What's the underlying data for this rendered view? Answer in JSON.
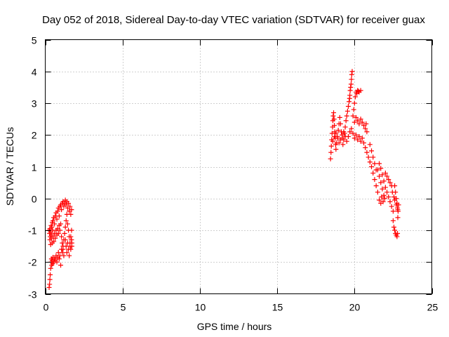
{
  "chart_data": {
    "type": "scatter",
    "title": "Day 052 of 2018, Sidereal Day-to-day VTEC variation (SDTVAR) for receiver guax",
    "xlabel": "GPS time / hours",
    "ylabel": "SDTVAR / TECUs",
    "xlim": [
      0,
      25
    ],
    "ylim": [
      -3,
      5
    ],
    "xticks": [
      "0",
      "5",
      "10",
      "15",
      "20",
      "25"
    ],
    "yticks": [
      "-3",
      "-2",
      "-1",
      "0",
      "1",
      "2",
      "3",
      "4",
      "5"
    ],
    "grid": true,
    "marker": "plus",
    "color": "#ff0000",
    "series": [
      {
        "name": "",
        "points": [
          [
            0.25,
            -2.8
          ],
          [
            0.28,
            -2.7
          ],
          [
            0.3,
            -2.55
          ],
          [
            0.32,
            -2.4
          ],
          [
            0.35,
            -2.2
          ],
          [
            0.38,
            -2.0
          ],
          [
            0.4,
            -1.9
          ],
          [
            0.42,
            -2.1
          ],
          [
            0.45,
            -1.95
          ],
          [
            0.48,
            -2.05
          ],
          [
            0.5,
            -1.85
          ],
          [
            0.55,
            -2.0
          ],
          [
            0.6,
            -1.9
          ],
          [
            0.65,
            -1.95
          ],
          [
            0.7,
            -1.8
          ],
          [
            0.75,
            -2.0
          ],
          [
            0.8,
            -1.85
          ],
          [
            0.85,
            -1.7
          ],
          [
            0.9,
            -1.9
          ],
          [
            0.95,
            -1.8
          ],
          [
            1.0,
            -2.1
          ],
          [
            1.05,
            -1.6
          ],
          [
            1.1,
            -1.7
          ],
          [
            1.15,
            -1.5
          ],
          [
            1.2,
            -1.8
          ],
          [
            0.25,
            -1.0
          ],
          [
            0.28,
            -1.1
          ],
          [
            0.3,
            -0.95
          ],
          [
            0.32,
            -1.2
          ],
          [
            0.35,
            -1.05
          ],
          [
            0.38,
            -0.85
          ],
          [
            0.4,
            -1.15
          ],
          [
            0.42,
            -0.9
          ],
          [
            0.45,
            -0.75
          ],
          [
            0.48,
            -1.0
          ],
          [
            0.5,
            -0.7
          ],
          [
            0.55,
            -0.6
          ],
          [
            0.6,
            -0.8
          ],
          [
            0.65,
            -0.55
          ],
          [
            0.7,
            -0.45
          ],
          [
            0.75,
            -0.65
          ],
          [
            0.8,
            -0.4
          ],
          [
            0.85,
            -0.3
          ],
          [
            0.9,
            -0.55
          ],
          [
            0.95,
            -0.25
          ],
          [
            1.0,
            -0.2
          ],
          [
            1.05,
            -0.35
          ],
          [
            1.1,
            -0.15
          ],
          [
            1.15,
            -0.1
          ],
          [
            1.2,
            -0.25
          ],
          [
            1.25,
            -0.15
          ],
          [
            1.3,
            -0.05
          ],
          [
            1.35,
            -0.2
          ],
          [
            1.4,
            -0.1
          ],
          [
            1.45,
            -0.3
          ],
          [
            1.5,
            -0.15
          ],
          [
            1.55,
            -0.4
          ],
          [
            1.6,
            -0.25
          ],
          [
            1.65,
            -0.5
          ],
          [
            1.7,
            -0.35
          ],
          [
            0.3,
            -1.3
          ],
          [
            0.35,
            -1.45
          ],
          [
            0.4,
            -1.25
          ],
          [
            0.45,
            -1.4
          ],
          [
            0.5,
            -1.2
          ],
          [
            0.55,
            -1.35
          ],
          [
            0.6,
            -1.1
          ],
          [
            0.65,
            -1.25
          ],
          [
            0.7,
            -1.0
          ],
          [
            0.75,
            -1.15
          ],
          [
            0.8,
            -0.95
          ],
          [
            0.85,
            -1.1
          ],
          [
            0.9,
            -0.85
          ],
          [
            0.95,
            -1.0
          ],
          [
            1.0,
            -0.8
          ],
          [
            1.05,
            -1.2
          ],
          [
            1.1,
            -1.4
          ],
          [
            1.15,
            -1.6
          ],
          [
            1.2,
            -1.3
          ],
          [
            1.25,
            -1.1
          ],
          [
            1.3,
            -0.9
          ],
          [
            1.35,
            -0.7
          ],
          [
            1.4,
            -0.5
          ],
          [
            1.45,
            -0.8
          ],
          [
            1.5,
            -1.0
          ],
          [
            1.55,
            -1.2
          ],
          [
            1.6,
            -1.4
          ],
          [
            1.65,
            -1.6
          ],
          [
            1.7,
            -1.3
          ],
          [
            1.72,
            -1.5
          ],
          [
            1.3,
            -1.3
          ],
          [
            1.35,
            -1.5
          ],
          [
            1.4,
            -1.7
          ],
          [
            1.45,
            -1.4
          ],
          [
            1.5,
            -1.6
          ],
          [
            1.55,
            -1.8
          ],
          [
            1.6,
            -1.5
          ],
          [
            1.65,
            -1.2
          ],
          [
            1.7,
            -1.0
          ],
          [
            1.72,
            -1.4
          ],
          [
            18.45,
            1.25
          ],
          [
            18.48,
            1.45
          ],
          [
            18.5,
            1.65
          ],
          [
            18.52,
            1.85
          ],
          [
            18.55,
            2.05
          ],
          [
            18.58,
            2.25
          ],
          [
            18.6,
            2.45
          ],
          [
            18.62,
            2.6
          ],
          [
            18.65,
            2.7
          ],
          [
            18.68,
            2.5
          ],
          [
            18.7,
            2.3
          ],
          [
            18.72,
            2.1
          ],
          [
            18.75,
            1.9
          ],
          [
            18.78,
            1.7
          ],
          [
            18.8,
            1.55
          ],
          [
            18.85,
            1.75
          ],
          [
            18.9,
            1.95
          ],
          [
            18.95,
            2.15
          ],
          [
            19.0,
            2.35
          ],
          [
            19.05,
            2.55
          ],
          [
            19.1,
            2.35
          ],
          [
            19.15,
            2.1
          ],
          [
            19.2,
            1.9
          ],
          [
            19.25,
            1.7
          ],
          [
            19.3,
            1.85
          ],
          [
            19.35,
            2.05
          ],
          [
            19.4,
            2.25
          ],
          [
            19.45,
            2.45
          ],
          [
            19.5,
            2.6
          ],
          [
            19.55,
            2.75
          ],
          [
            19.6,
            2.9
          ],
          [
            19.65,
            3.05
          ],
          [
            19.7,
            3.25
          ],
          [
            19.75,
            3.5
          ],
          [
            19.8,
            3.75
          ],
          [
            19.85,
            4.0
          ],
          [
            19.82,
            3.9
          ],
          [
            19.78,
            3.6
          ],
          [
            19.72,
            3.4
          ],
          [
            19.68,
            3.15
          ],
          [
            18.6,
            1.8
          ],
          [
            18.7,
            1.95
          ],
          [
            18.8,
            2.05
          ],
          [
            18.9,
            1.9
          ],
          [
            19.0,
            1.75
          ],
          [
            19.1,
            1.85
          ],
          [
            19.2,
            2.0
          ],
          [
            19.3,
            2.1
          ],
          [
            19.4,
            1.95
          ],
          [
            19.5,
            1.8
          ],
          [
            19.6,
            1.95
          ],
          [
            19.7,
            2.1
          ],
          [
            19.8,
            2.2
          ],
          [
            19.9,
            2.05
          ],
          [
            20.0,
            1.9
          ],
          [
            19.9,
            2.6
          ],
          [
            19.95,
            2.8
          ],
          [
            20.0,
            3.0
          ],
          [
            20.05,
            3.2
          ],
          [
            20.1,
            3.35
          ],
          [
            20.2,
            3.4
          ],
          [
            20.3,
            3.35
          ],
          [
            20.4,
            3.4
          ],
          [
            20.15,
            3.3
          ],
          [
            20.25,
            3.38
          ],
          [
            20.0,
            2.4
          ],
          [
            20.1,
            2.55
          ],
          [
            20.2,
            2.45
          ],
          [
            20.3,
            2.35
          ],
          [
            20.4,
            2.5
          ],
          [
            20.5,
            2.4
          ],
          [
            20.6,
            2.3
          ],
          [
            20.7,
            2.2
          ],
          [
            20.8,
            2.1
          ],
          [
            20.75,
            2.35
          ],
          [
            20.1,
            2.0
          ],
          [
            20.2,
            1.85
          ],
          [
            20.3,
            1.95
          ],
          [
            20.4,
            1.8
          ],
          [
            20.5,
            1.9
          ],
          [
            20.6,
            1.75
          ],
          [
            20.7,
            1.6
          ],
          [
            20.8,
            1.45
          ],
          [
            20.9,
            1.3
          ],
          [
            21.0,
            1.15
          ],
          [
            21.0,
            1.7
          ],
          [
            21.1,
            1.5
          ],
          [
            21.2,
            1.3
          ],
          [
            21.3,
            1.1
          ],
          [
            21.4,
            0.9
          ],
          [
            21.1,
            1.0
          ],
          [
            21.2,
            0.8
          ],
          [
            21.3,
            0.6
          ],
          [
            21.4,
            0.4
          ],
          [
            21.5,
            0.2
          ],
          [
            21.5,
            0.9
          ],
          [
            21.6,
            0.7
          ],
          [
            21.7,
            0.5
          ],
          [
            21.8,
            0.3
          ],
          [
            21.9,
            0.1
          ],
          [
            21.6,
            1.1
          ],
          [
            21.7,
            0.95
          ],
          [
            21.8,
            0.75
          ],
          [
            21.9,
            0.55
          ],
          [
            22.0,
            0.35
          ],
          [
            21.6,
            -0.05
          ],
          [
            21.7,
            -0.15
          ],
          [
            21.75,
            0.05
          ],
          [
            21.85,
            -0.1
          ],
          [
            21.95,
            0.0
          ],
          [
            22.0,
            0.8
          ],
          [
            22.1,
            0.7
          ],
          [
            22.2,
            0.6
          ],
          [
            22.3,
            0.5
          ],
          [
            22.4,
            0.4
          ],
          [
            22.1,
            0.2
          ],
          [
            22.2,
            0.05
          ],
          [
            22.3,
            -0.1
          ],
          [
            22.4,
            -0.25
          ],
          [
            22.5,
            -0.4
          ],
          [
            22.45,
            0.2
          ],
          [
            22.55,
            0.05
          ],
          [
            22.6,
            -0.05
          ],
          [
            22.7,
            -0.2
          ],
          [
            22.8,
            -0.35
          ],
          [
            22.5,
            -0.7
          ],
          [
            22.55,
            -0.9
          ],
          [
            22.6,
            -1.0
          ],
          [
            22.65,
            -1.1
          ],
          [
            22.7,
            -1.15
          ],
          [
            22.75,
            -1.2
          ],
          [
            22.78,
            -1.1
          ],
          [
            22.8,
            -0.6
          ],
          [
            22.82,
            -0.4
          ],
          [
            22.85,
            -0.2
          ],
          [
            22.6,
            0.4
          ],
          [
            22.65,
            0.2
          ],
          [
            22.7,
            0.0
          ],
          [
            22.75,
            -0.15
          ],
          [
            22.78,
            -0.3
          ]
        ]
      }
    ]
  }
}
